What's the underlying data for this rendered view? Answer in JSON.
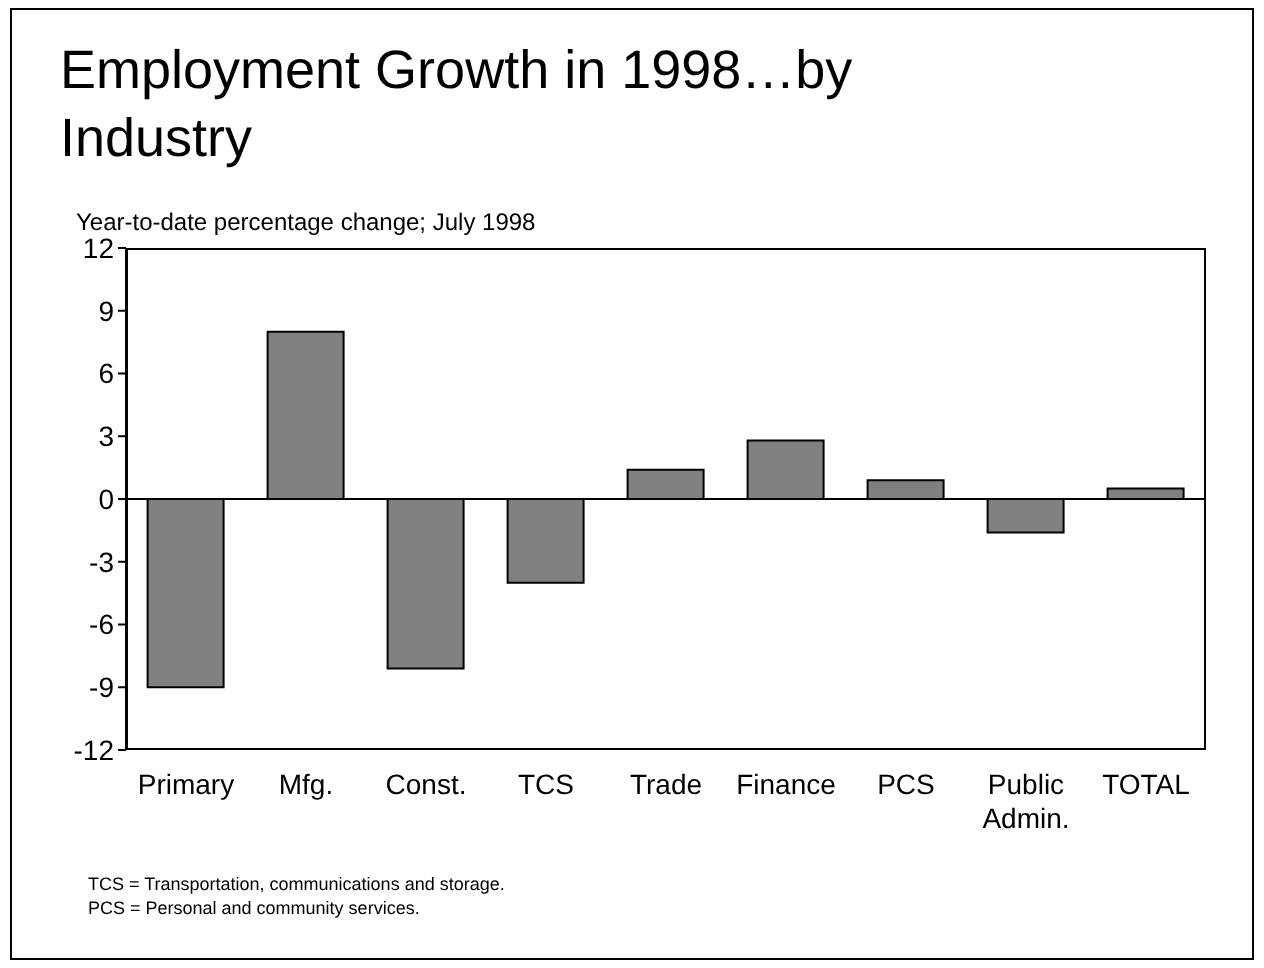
{
  "chart_data": {
    "type": "bar",
    "title": "Employment Growth in 1998…by Industry",
    "subtitle": "Year-to-date percentage change; July 1998",
    "categories": [
      "Primary",
      "Mfg.",
      "Const.",
      "TCS",
      "Trade",
      "Finance",
      "PCS",
      "Public Admin.",
      "TOTAL"
    ],
    "values": [
      -9.0,
      8.0,
      -8.1,
      -4.0,
      1.4,
      2.8,
      0.9,
      -1.6,
      0.5
    ],
    "color": "#808080",
    "ylim": [
      -12,
      12
    ],
    "yticks": [
      -12,
      -9,
      -6,
      -3,
      0,
      3,
      6,
      9,
      12
    ],
    "annotations": [
      "TCS = Transportation, communications and storage.",
      "PCS = Personal and community services."
    ]
  }
}
